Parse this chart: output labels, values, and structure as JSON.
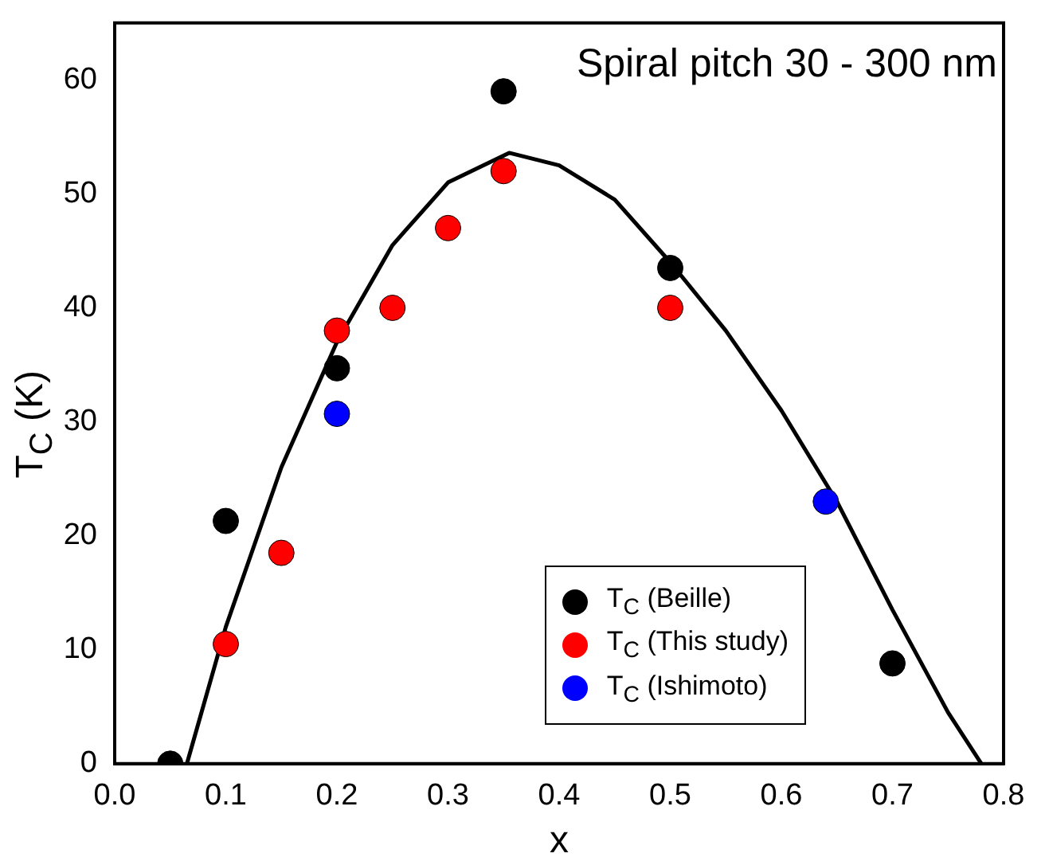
{
  "chart_data": {
    "type": "scatter",
    "xlabel": "x",
    "ylabel": "T$_{C}$ (K)",
    "annotations": [
      "Spiral pitch 30 - 300 nm"
    ],
    "xlim": [
      0,
      0.8
    ],
    "xticks": [
      {
        "value": 0,
        "label": "0.0"
      },
      {
        "value": 0.1,
        "label": "0.1"
      },
      {
        "value": 0.2,
        "label": "0.2"
      },
      {
        "value": 0.3,
        "label": "0.3"
      },
      {
        "value": 0.4,
        "label": "0.4"
      },
      {
        "value": 0.5,
        "label": "0.5"
      },
      {
        "value": 0.6,
        "label": "0.6"
      },
      {
        "value": 0.7,
        "label": "0.7"
      },
      {
        "value": 0.8,
        "label": "0.8"
      }
    ],
    "ylim": [
      0,
      65
    ],
    "yticks": [
      0,
      10,
      20,
      30,
      40,
      50,
      60
    ],
    "legend": "bottom right",
    "marker": "circle",
    "grid": false,
    "series": [
      {
        "type": "line",
        "color": "#000000",
        "x": [
          0.065,
          0.1,
          0.15,
          0.2,
          0.25,
          0.3,
          0.355,
          0.4,
          0.45,
          0.5,
          0.55,
          0.6,
          0.65,
          0.7,
          0.75,
          0.78
        ],
        "values": [
          0,
          12,
          26,
          37,
          45.5,
          51,
          53.6,
          52.5,
          49.5,
          44,
          38,
          31,
          23,
          13.5,
          4.5,
          0
        ],
        "marker": "none"
      },
      {
        "name": "T$_{C}$ (Beille)",
        "color": "#000000",
        "x": [
          0.05,
          0.1,
          0.2,
          0.35,
          0.5,
          0.7
        ],
        "values": [
          0,
          21.3,
          34.7,
          59,
          43.5,
          8.8
        ]
      },
      {
        "name": "T$_{C}$ (This study)",
        "color": "#ff0000",
        "x": [
          0.1,
          0.15,
          0.2,
          0.25,
          0.3,
          0.35,
          0.5
        ],
        "values": [
          10.5,
          18.5,
          38,
          40,
          47,
          52,
          40
        ]
      },
      {
        "name": "T$_{C}$ (Ishimoto)",
        "color": "#0000ff",
        "x": [
          0.2,
          0.64
        ],
        "values": [
          30.7,
          23
        ]
      }
    ]
  }
}
